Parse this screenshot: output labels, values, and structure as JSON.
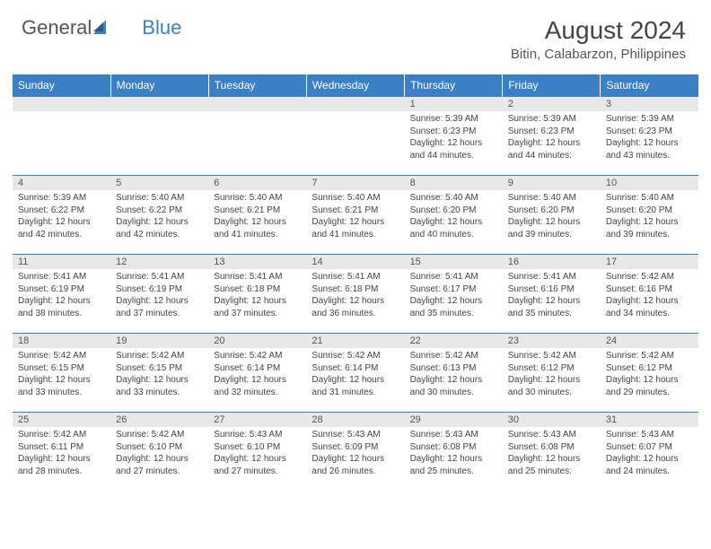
{
  "logo": {
    "text1": "General",
    "text2": "Blue"
  },
  "title": "August 2024",
  "location": "Bitin, Calabarzon, Philippines",
  "colors": {
    "header_bg": "#3b7fc4",
    "header_text": "#ffffff",
    "daynum_bg": "#e8e8e8",
    "border": "#3b7fc4",
    "body_text": "#444444",
    "page_bg": "#ffffff"
  },
  "typography": {
    "title_fontsize": 28,
    "location_fontsize": 15,
    "dayheader_fontsize": 12,
    "daynum_fontsize": 11,
    "cell_fontsize": 10
  },
  "layout": {
    "columns": 7,
    "rows": 5,
    "first_day_column": 4
  },
  "day_headers": [
    "Sunday",
    "Monday",
    "Tuesday",
    "Wednesday",
    "Thursday",
    "Friday",
    "Saturday"
  ],
  "days": [
    {
      "n": 1,
      "sunrise": "5:39 AM",
      "sunset": "6:23 PM",
      "daylight": "12 hours and 44 minutes."
    },
    {
      "n": 2,
      "sunrise": "5:39 AM",
      "sunset": "6:23 PM",
      "daylight": "12 hours and 44 minutes."
    },
    {
      "n": 3,
      "sunrise": "5:39 AM",
      "sunset": "6:23 PM",
      "daylight": "12 hours and 43 minutes."
    },
    {
      "n": 4,
      "sunrise": "5:39 AM",
      "sunset": "6:22 PM",
      "daylight": "12 hours and 42 minutes."
    },
    {
      "n": 5,
      "sunrise": "5:40 AM",
      "sunset": "6:22 PM",
      "daylight": "12 hours and 42 minutes."
    },
    {
      "n": 6,
      "sunrise": "5:40 AM",
      "sunset": "6:21 PM",
      "daylight": "12 hours and 41 minutes."
    },
    {
      "n": 7,
      "sunrise": "5:40 AM",
      "sunset": "6:21 PM",
      "daylight": "12 hours and 41 minutes."
    },
    {
      "n": 8,
      "sunrise": "5:40 AM",
      "sunset": "6:20 PM",
      "daylight": "12 hours and 40 minutes."
    },
    {
      "n": 9,
      "sunrise": "5:40 AM",
      "sunset": "6:20 PM",
      "daylight": "12 hours and 39 minutes."
    },
    {
      "n": 10,
      "sunrise": "5:40 AM",
      "sunset": "6:20 PM",
      "daylight": "12 hours and 39 minutes."
    },
    {
      "n": 11,
      "sunrise": "5:41 AM",
      "sunset": "6:19 PM",
      "daylight": "12 hours and 38 minutes."
    },
    {
      "n": 12,
      "sunrise": "5:41 AM",
      "sunset": "6:19 PM",
      "daylight": "12 hours and 37 minutes."
    },
    {
      "n": 13,
      "sunrise": "5:41 AM",
      "sunset": "6:18 PM",
      "daylight": "12 hours and 37 minutes."
    },
    {
      "n": 14,
      "sunrise": "5:41 AM",
      "sunset": "6:18 PM",
      "daylight": "12 hours and 36 minutes."
    },
    {
      "n": 15,
      "sunrise": "5:41 AM",
      "sunset": "6:17 PM",
      "daylight": "12 hours and 35 minutes."
    },
    {
      "n": 16,
      "sunrise": "5:41 AM",
      "sunset": "6:16 PM",
      "daylight": "12 hours and 35 minutes."
    },
    {
      "n": 17,
      "sunrise": "5:42 AM",
      "sunset": "6:16 PM",
      "daylight": "12 hours and 34 minutes."
    },
    {
      "n": 18,
      "sunrise": "5:42 AM",
      "sunset": "6:15 PM",
      "daylight": "12 hours and 33 minutes."
    },
    {
      "n": 19,
      "sunrise": "5:42 AM",
      "sunset": "6:15 PM",
      "daylight": "12 hours and 33 minutes."
    },
    {
      "n": 20,
      "sunrise": "5:42 AM",
      "sunset": "6:14 PM",
      "daylight": "12 hours and 32 minutes."
    },
    {
      "n": 21,
      "sunrise": "5:42 AM",
      "sunset": "6:14 PM",
      "daylight": "12 hours and 31 minutes."
    },
    {
      "n": 22,
      "sunrise": "5:42 AM",
      "sunset": "6:13 PM",
      "daylight": "12 hours and 30 minutes."
    },
    {
      "n": 23,
      "sunrise": "5:42 AM",
      "sunset": "6:12 PM",
      "daylight": "12 hours and 30 minutes."
    },
    {
      "n": 24,
      "sunrise": "5:42 AM",
      "sunset": "6:12 PM",
      "daylight": "12 hours and 29 minutes."
    },
    {
      "n": 25,
      "sunrise": "5:42 AM",
      "sunset": "6:11 PM",
      "daylight": "12 hours and 28 minutes."
    },
    {
      "n": 26,
      "sunrise": "5:42 AM",
      "sunset": "6:10 PM",
      "daylight": "12 hours and 27 minutes."
    },
    {
      "n": 27,
      "sunrise": "5:43 AM",
      "sunset": "6:10 PM",
      "daylight": "12 hours and 27 minutes."
    },
    {
      "n": 28,
      "sunrise": "5:43 AM",
      "sunset": "6:09 PM",
      "daylight": "12 hours and 26 minutes."
    },
    {
      "n": 29,
      "sunrise": "5:43 AM",
      "sunset": "6:08 PM",
      "daylight": "12 hours and 25 minutes."
    },
    {
      "n": 30,
      "sunrise": "5:43 AM",
      "sunset": "6:08 PM",
      "daylight": "12 hours and 25 minutes."
    },
    {
      "n": 31,
      "sunrise": "5:43 AM",
      "sunset": "6:07 PM",
      "daylight": "12 hours and 24 minutes."
    }
  ],
  "labels": {
    "sunrise": "Sunrise:",
    "sunset": "Sunset:",
    "daylight": "Daylight:"
  }
}
